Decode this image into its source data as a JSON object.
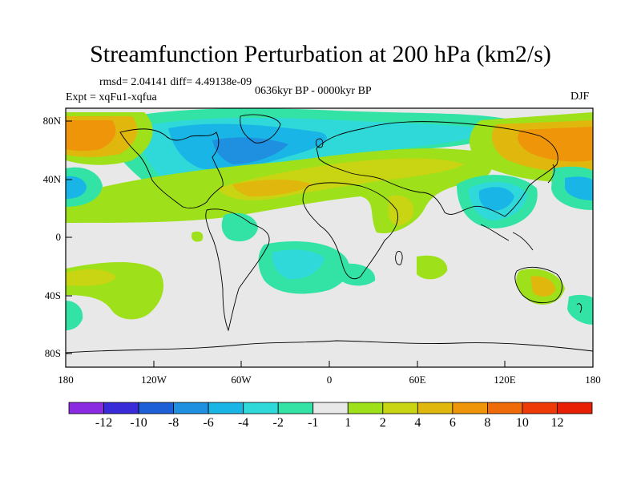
{
  "title": "Streamfunction Perturbation at 200 hPa (km2/s)",
  "stats": "rmsd= 2.04141  diff= 4.49138e-09",
  "period": "0636kyr BP - 0000kyr BP",
  "expt": "Expt = xqFu1-xqfua",
  "season": "DJF",
  "lat_labels": [
    "80N",
    "40N",
    "0",
    "40S",
    "80S"
  ],
  "lon_labels": [
    "180",
    "120W",
    "60W",
    "0",
    "60E",
    "120E",
    "180"
  ],
  "colorbar": {
    "labels": [
      "-12",
      "-10",
      "-8",
      "-6",
      "-4",
      "-2",
      "-1",
      "1",
      "2",
      "4",
      "6",
      "8",
      "10",
      "12"
    ],
    "colors": [
      "#8a2be2",
      "#3a2bd8",
      "#1c5fd6",
      "#1f8fe0",
      "#19b5e6",
      "#2fd9d9",
      "#33e3a5",
      "#e8e8e8",
      "#9ee01a",
      "#c9d512",
      "#e0b80d",
      "#ee950a",
      "#ef6a08",
      "#ee3a06",
      "#e81e05"
    ]
  },
  "colors": {
    "neutral": "#e8e8e8",
    "frame": "#000000"
  }
}
